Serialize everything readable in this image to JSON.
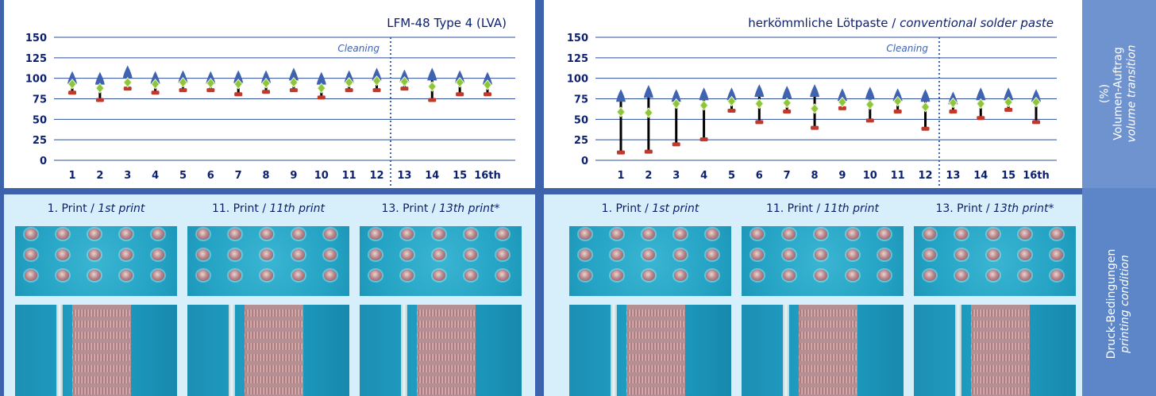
{
  "chart_data": [
    {
      "type": "candlestick",
      "title": "LFM-48 Type 4 (LVA)",
      "subtitle": "",
      "categories": [
        "1",
        "2",
        "3",
        "4",
        "5",
        "6",
        "7",
        "8",
        "9",
        "10",
        "11",
        "12",
        "13",
        "14",
        "15",
        "16th"
      ],
      "ylim": [
        0,
        150
      ],
      "yticks": [
        0,
        25,
        50,
        75,
        100,
        125,
        150
      ],
      "annotation": "Cleaning",
      "cleaning_after_index": 11,
      "series": [
        {
          "name": "max",
          "marker": "blue-triangle",
          "values": [
            103,
            102,
            110,
            103,
            104,
            103,
            104,
            104,
            107,
            102,
            104,
            107,
            105,
            107,
            104,
            102
          ]
        },
        {
          "name": "mean",
          "marker": "green-diamond",
          "values": [
            93,
            88,
            95,
            93,
            95,
            94,
            93,
            94,
            95,
            88,
            95,
            97,
            96,
            90,
            95,
            92
          ]
        },
        {
          "name": "min",
          "marker": "red-bar",
          "values": [
            83,
            74,
            88,
            83,
            86,
            86,
            81,
            84,
            86,
            77,
            86,
            86,
            88,
            74,
            81,
            81
          ]
        }
      ],
      "grid": true,
      "colors": {
        "max": "#3f63b0",
        "mean": "#8cc63f",
        "min": "#c0392b",
        "range_line": "#000000",
        "grid": "#2d4f9b",
        "axis_text": "#0b1f6e"
      }
    },
    {
      "type": "candlestick",
      "title": "herkömmliche Lötpaste / ",
      "subtitle": "conventional solder paste",
      "categories": [
        "1",
        "2",
        "3",
        "4",
        "5",
        "6",
        "7",
        "8",
        "9",
        "10",
        "11",
        "12",
        "13",
        "14",
        "15",
        "16th"
      ],
      "ylim": [
        0,
        150
      ],
      "yticks": [
        0,
        25,
        50,
        75,
        100,
        125,
        150
      ],
      "annotation": "Cleaning",
      "cleaning_after_index": 11,
      "series": [
        {
          "name": "max",
          "marker": "blue-triangle",
          "values": [
            81,
            86,
            81,
            83,
            83,
            87,
            85,
            87,
            82,
            84,
            82,
            81,
            78,
            83,
            83,
            81
          ]
        },
        {
          "name": "mean",
          "marker": "green-diamond",
          "values": [
            59,
            58,
            69,
            67,
            72,
            69,
            70,
            63,
            71,
            68,
            72,
            65,
            70,
            69,
            71,
            71
          ]
        },
        {
          "name": "min",
          "marker": "red-bar",
          "values": [
            10,
            11,
            20,
            26,
            61,
            47,
            60,
            40,
            64,
            49,
            60,
            39,
            60,
            52,
            62,
            47
          ]
        }
      ],
      "grid": true,
      "colors": {
        "max": "#3f63b0",
        "mean": "#8cc63f",
        "min": "#c0392b",
        "range_line": "#000000",
        "grid": "#2d4f9b",
        "axis_text": "#0b1f6e"
      }
    }
  ],
  "sidebar": {
    "chart_label_pct": "(%)",
    "chart_label_de": "Volumen-Auftrag",
    "chart_label_en": "volume transition",
    "photo_label_de": "Druck-Bedingungen",
    "photo_label_en": "printing condition"
  },
  "photos": {
    "left": [
      {
        "caption_main": "1. Print / ",
        "caption_it": "1st print"
      },
      {
        "caption_main": "11. Print / ",
        "caption_it": "11th print"
      },
      {
        "caption_main": "13. Print / ",
        "caption_it": "13th print*"
      }
    ],
    "right": [
      {
        "caption_main": "1. Print / ",
        "caption_it": "1st print"
      },
      {
        "caption_main": "11. Print / ",
        "caption_it": "11th print"
      },
      {
        "caption_main": "13. Print / ",
        "caption_it": "13th print*"
      }
    ]
  }
}
